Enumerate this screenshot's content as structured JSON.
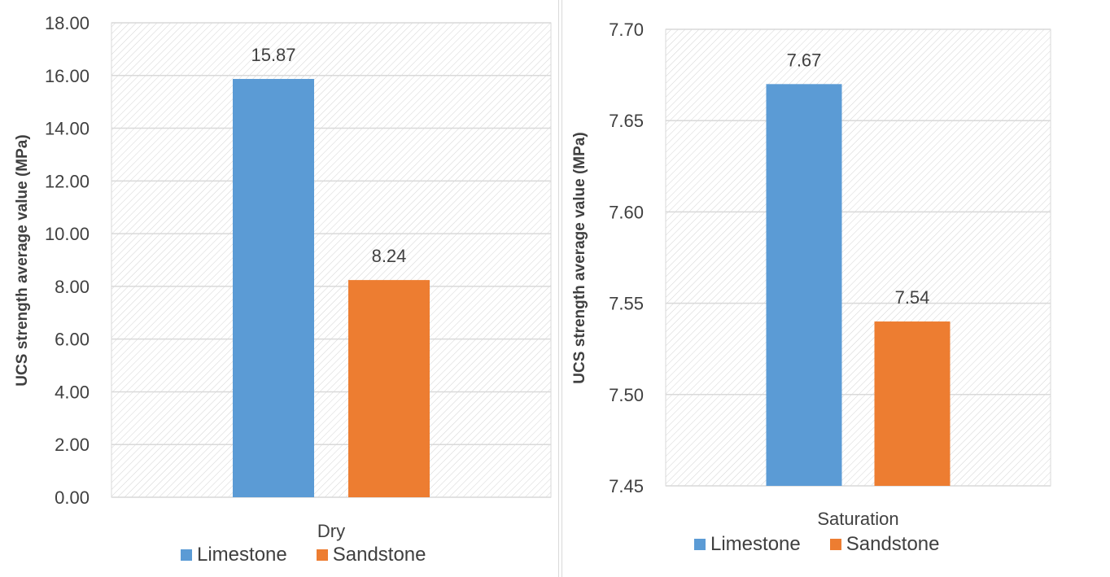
{
  "chart_data": [
    {
      "type": "bar",
      "categories": [
        "Dry"
      ],
      "series": [
        {
          "name": "Limestone",
          "values": [
            15.87
          ],
          "color": "#5B9BD5"
        },
        {
          "name": "Sandstone",
          "values": [
            8.24
          ],
          "color": "#ED7D31"
        }
      ],
      "data_labels": [
        "15.87",
        "8.24"
      ],
      "xlabel": "",
      "ylabel": "UCS strength average value (MPa)",
      "ylim": [
        0,
        18
      ],
      "yticks": [
        "0.00",
        "2.00",
        "4.00",
        "6.00",
        "8.00",
        "10.00",
        "12.00",
        "14.00",
        "16.00",
        "18.00"
      ],
      "grid": true,
      "legend": "bottom"
    },
    {
      "type": "bar",
      "categories": [
        "Saturation"
      ],
      "series": [
        {
          "name": "Limestone",
          "values": [
            7.67
          ],
          "color": "#5B9BD5"
        },
        {
          "name": "Sandstone",
          "values": [
            7.54
          ],
          "color": "#ED7D31"
        }
      ],
      "data_labels": [
        "7.67",
        "7.54"
      ],
      "xlabel": "",
      "ylabel": "UCS strength average value (MPa)",
      "ylim": [
        7.45,
        7.7
      ],
      "yticks": [
        "7.45",
        "7.50",
        "7.55",
        "7.60",
        "7.65",
        "7.70"
      ],
      "grid": true,
      "legend": "bottom"
    }
  ]
}
